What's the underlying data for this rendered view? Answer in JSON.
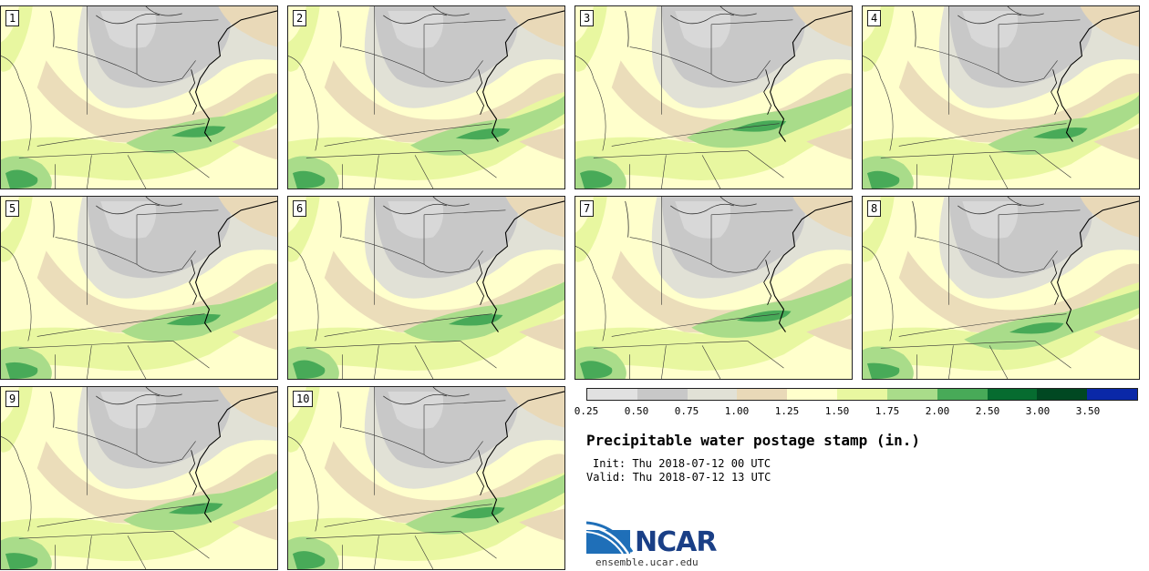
{
  "panels": [
    {
      "label": "1"
    },
    {
      "label": "2"
    },
    {
      "label": "3"
    },
    {
      "label": "4"
    },
    {
      "label": "5"
    },
    {
      "label": "6"
    },
    {
      "label": "7"
    },
    {
      "label": "8"
    },
    {
      "label": "9"
    },
    {
      "label": "10"
    }
  ],
  "legend": {
    "colors": [
      "#e1e1e1",
      "#c8c8c8",
      "#e1e1d6",
      "#e9d9b8",
      "#ffffcc",
      "#e8f7a0",
      "#a9dc8a",
      "#48aa58",
      "#066c30",
      "#004822",
      "#0a28a8"
    ],
    "ticks": [
      "0.25",
      "0.50",
      "0.75",
      "1.00",
      "1.25",
      "1.50",
      "1.75",
      "2.00",
      "2.50",
      "3.00",
      "3.50"
    ]
  },
  "title": "Precipitable water postage stamp (in.)",
  "init": "Init: Thu 2018-07-12 00 UTC",
  "valid": "Valid: Thu 2018-07-12 13 UTC",
  "logo": {
    "name": "NCAR",
    "url": "ensemble.ucar.edu"
  }
}
